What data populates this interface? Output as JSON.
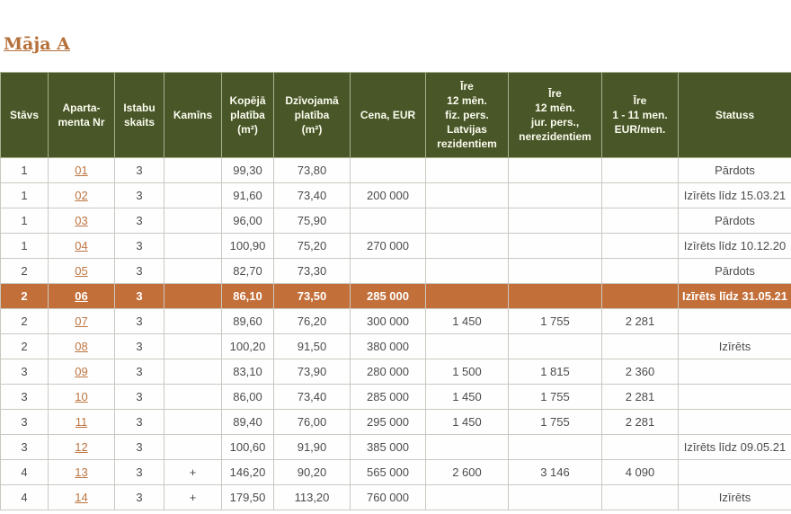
{
  "title": "Māja A",
  "colors": {
    "header_bg": "#485628",
    "header_text": "#fbfbee",
    "highlight_bg": "#c36f3a",
    "highlight_text": "#ffffff",
    "link_color": "#bd7440",
    "title_color": "#b5703a",
    "cell_text": "#4c4c4c",
    "border_color": "#c9c9c2"
  },
  "table": {
    "columns": [
      "Stāvs",
      "Aparta-\nmenta Nr",
      "Istabu\nskaits",
      "Kamīns",
      "Kopējā\nplatība\n(m²)",
      "Dzīvojamā\nplatība\n(m²)",
      "Cena, EUR",
      "Īre\n12 mēn.\nfiz. pers.\nLatvijas\nrezidentiem",
      "Īre\n12 mēn.\njur. pers.,\nnerezidentiem",
      "Īre\n1 - 11 men.\nEUR/men.",
      "Statuss"
    ],
    "rows": [
      {
        "highlighted": false,
        "cells": [
          "1",
          "01",
          "3",
          "",
          "99,30",
          "73,80",
          "",
          "",
          "",
          "",
          "Pārdots"
        ]
      },
      {
        "highlighted": false,
        "cells": [
          "1",
          "02",
          "3",
          "",
          "91,60",
          "73,40",
          "200 000",
          "",
          "",
          "",
          "Izīrēts līdz 15.03.21"
        ]
      },
      {
        "highlighted": false,
        "cells": [
          "1",
          "03",
          "3",
          "",
          "96,00",
          "75,90",
          "",
          "",
          "",
          "",
          "Pārdots"
        ]
      },
      {
        "highlighted": false,
        "cells": [
          "1",
          "04",
          "3",
          "",
          "100,90",
          "75,20",
          "270 000",
          "",
          "",
          "",
          "Izīrēts līdz 10.12.20"
        ]
      },
      {
        "highlighted": false,
        "cells": [
          "2",
          "05",
          "3",
          "",
          "82,70",
          "73,30",
          "",
          "",
          "",
          "",
          "Pārdots"
        ]
      },
      {
        "highlighted": true,
        "cells": [
          "2",
          "06",
          "3",
          "",
          "86,10",
          "73,50",
          "285 000",
          "",
          "",
          "",
          "Izīrēts līdz 31.05.21"
        ]
      },
      {
        "highlighted": false,
        "cells": [
          "2",
          "07",
          "3",
          "",
          "89,60",
          "76,20",
          "300 000",
          "1 450",
          "1 755",
          "2 281",
          ""
        ]
      },
      {
        "highlighted": false,
        "cells": [
          "2",
          "08",
          "3",
          "",
          "100,20",
          "91,50",
          "380 000",
          "",
          "",
          "",
          "Izīrēts"
        ]
      },
      {
        "highlighted": false,
        "cells": [
          "3",
          "09",
          "3",
          "",
          "83,10",
          "73,90",
          "280 000",
          "1 500",
          "1 815",
          "2 360",
          ""
        ]
      },
      {
        "highlighted": false,
        "cells": [
          "3",
          "10",
          "3",
          "",
          "86,00",
          "73,40",
          "285 000",
          "1 450",
          "1 755",
          "2 281",
          ""
        ]
      },
      {
        "highlighted": false,
        "cells": [
          "3",
          "11",
          "3",
          "",
          "89,40",
          "76,00",
          "295 000",
          "1 450",
          "1 755",
          "2 281",
          ""
        ]
      },
      {
        "highlighted": false,
        "cells": [
          "3",
          "12",
          "3",
          "",
          "100,60",
          "91,90",
          "385 000",
          "",
          "",
          "",
          "Izīrēts līdz 09.05.21"
        ]
      },
      {
        "highlighted": false,
        "cells": [
          "4",
          "13",
          "3",
          "+",
          "146,20",
          "90,20",
          "565 000",
          "2 600",
          "3 146",
          "4 090",
          ""
        ]
      },
      {
        "highlighted": false,
        "cells": [
          "4",
          "14",
          "3",
          "+",
          "179,50",
          "113,20",
          "760 000",
          "",
          "",
          "",
          "Izīrēts"
        ]
      }
    ]
  }
}
